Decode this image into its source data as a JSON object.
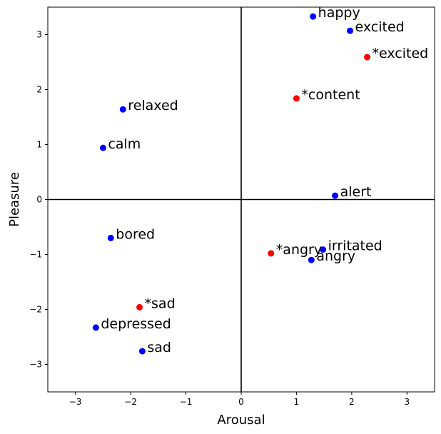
{
  "chart_data": {
    "type": "scatter",
    "xlabel": "Arousal",
    "ylabel": "Pleasure",
    "xlim": [
      -3.5,
      3.5
    ],
    "ylim": [
      -3.5,
      3.5
    ],
    "xticks": [
      -3,
      -2,
      -1,
      0,
      1,
      2,
      3
    ],
    "yticks": [
      -3,
      -2,
      -1,
      0,
      1,
      2,
      3
    ],
    "grid": false,
    "reference_lines": {
      "x": 0,
      "y": 0
    },
    "colors": {
      "standard": "#0000ff",
      "starred": "#ff0000"
    },
    "points": [
      {
        "label": "happy",
        "x": 1.3,
        "y": 3.33,
        "group": "standard"
      },
      {
        "label": "excited",
        "x": 1.97,
        "y": 3.07,
        "group": "standard"
      },
      {
        "label": "*excited",
        "x": 2.28,
        "y": 2.59,
        "group": "starred"
      },
      {
        "label": "*content",
        "x": 1.0,
        "y": 1.84,
        "group": "starred"
      },
      {
        "label": "relaxed",
        "x": -2.14,
        "y": 1.64,
        "group": "standard"
      },
      {
        "label": "calm",
        "x": -2.5,
        "y": 0.94,
        "group": "standard"
      },
      {
        "label": "alert",
        "x": 1.7,
        "y": 0.07,
        "group": "standard"
      },
      {
        "label": "bored",
        "x": -2.36,
        "y": -0.7,
        "group": "standard"
      },
      {
        "label": "irritated",
        "x": 1.48,
        "y": -0.91,
        "group": "standard"
      },
      {
        "label": "*angry",
        "x": 0.54,
        "y": -0.98,
        "group": "starred"
      },
      {
        "label": "angry",
        "x": 1.27,
        "y": -1.1,
        "group": "standard"
      },
      {
        "label": "*sad",
        "x": -1.84,
        "y": -1.96,
        "group": "starred"
      },
      {
        "label": "depressed",
        "x": -2.63,
        "y": -2.33,
        "group": "standard"
      },
      {
        "label": "sad",
        "x": -1.79,
        "y": -2.76,
        "group": "standard"
      }
    ]
  }
}
